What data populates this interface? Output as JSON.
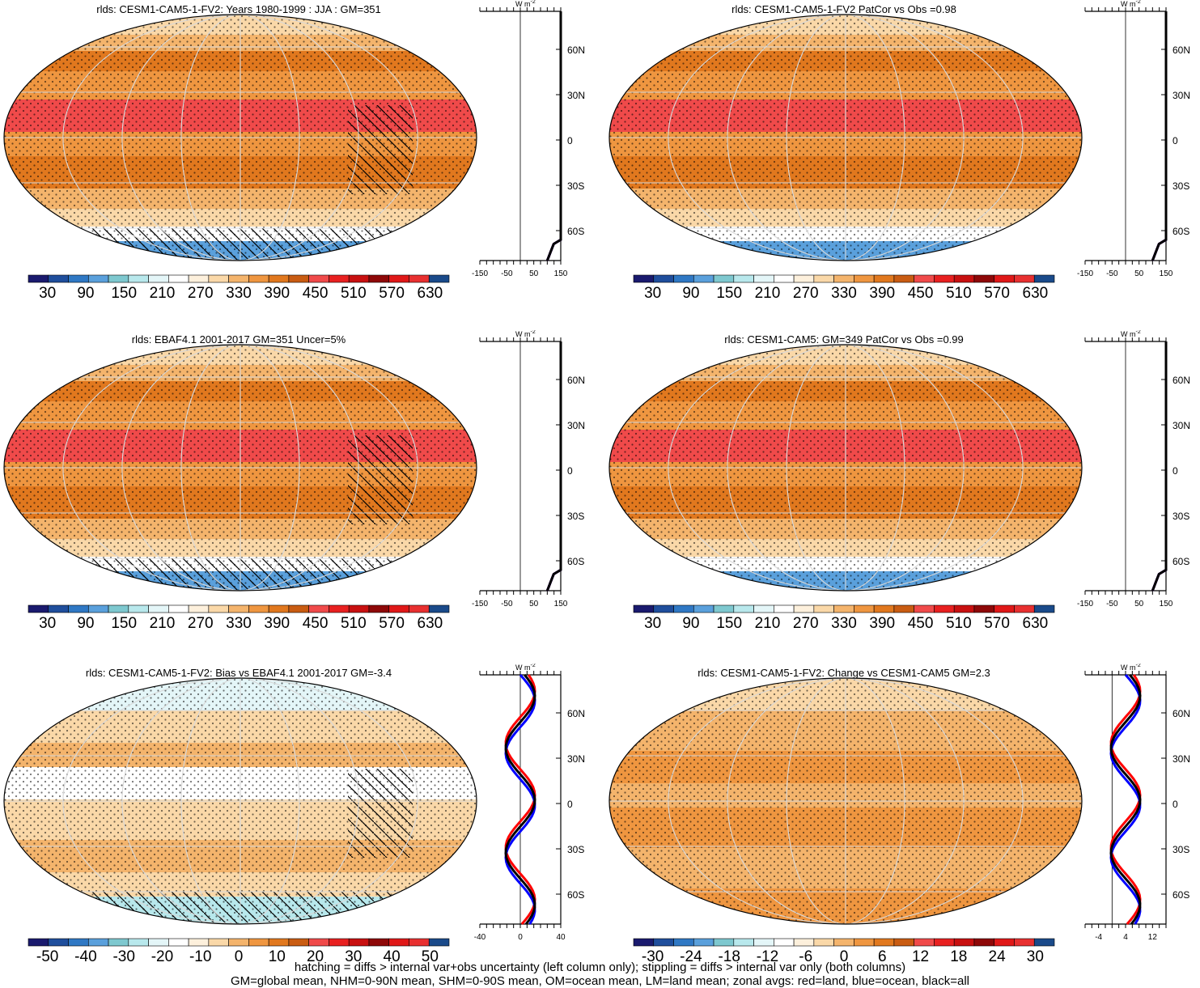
{
  "panels": [
    {
      "id": "p1",
      "title": "rlds: CESM1-CAM5-1-FV2: Years 1980-1999 : JJA : GM=351",
      "kind": "abs",
      "colorbar_labels": [
        "30",
        "90",
        "150",
        "210",
        "270",
        "330",
        "390",
        "450",
        "510",
        "570",
        "630"
      ],
      "zonal_ticks": [
        "-150",
        "-50",
        "50",
        "150"
      ],
      "zonal_range": [
        -150,
        150
      ]
    },
    {
      "id": "p2",
      "title": "rlds: CESM1-CAM5-1-FV2 PatCor vs Obs =0.98",
      "kind": "abs",
      "colorbar_labels": [
        "30",
        "90",
        "150",
        "210",
        "270",
        "330",
        "390",
        "450",
        "510",
        "570",
        "630"
      ],
      "zonal_ticks": [
        "-150",
        "-50",
        "50",
        "150"
      ],
      "zonal_range": [
        -150,
        150
      ]
    },
    {
      "id": "p3",
      "title": "rlds: EBAF4.1 2001-2017 GM=351 Uncer=5%",
      "kind": "abs",
      "colorbar_labels": [
        "30",
        "90",
        "150",
        "210",
        "270",
        "330",
        "390",
        "450",
        "510",
        "570",
        "630"
      ],
      "zonal_ticks": [
        "-150",
        "-50",
        "50",
        "150"
      ],
      "zonal_range": [
        -150,
        150
      ]
    },
    {
      "id": "p4",
      "title": "rlds: CESM1-CAM5: GM=349 PatCor vs Obs =0.99",
      "kind": "abs",
      "colorbar_labels": [
        "30",
        "90",
        "150",
        "210",
        "270",
        "330",
        "390",
        "450",
        "510",
        "570",
        "630"
      ],
      "zonal_ticks": [
        "-150",
        "-50",
        "50",
        "150"
      ],
      "zonal_range": [
        -150,
        150
      ]
    },
    {
      "id": "p5",
      "title": "rlds: CESM1-CAM5-1-FV2: Bias vs EBAF4.1 2001-2017 GM=-3.4",
      "kind": "bias",
      "colorbar_labels": [
        "-50",
        "-40",
        "-30",
        "-20",
        "-10",
        "0",
        "10",
        "20",
        "30",
        "40",
        "50"
      ],
      "zonal_ticks": [
        "-40",
        "0",
        "40"
      ],
      "zonal_range": [
        -40,
        40
      ]
    },
    {
      "id": "p6",
      "title": "rlds: CESM1-CAM5-1-FV2: Change vs CESM1-CAM5 GM=2.3",
      "kind": "change",
      "colorbar_labels": [
        "-30",
        "-24",
        "-18",
        "-12",
        "-6",
        "0",
        "6",
        "12",
        "18",
        "24",
        "30"
      ],
      "zonal_ticks": [
        "-4",
        "4",
        "12"
      ],
      "zonal_range": [
        -8,
        16
      ]
    }
  ],
  "lat_labels": [
    "60N",
    "30N",
    "0",
    "30S",
    "60S"
  ],
  "unit_label": "W m",
  "unit_exp": "-2",
  "colorbar_colors": [
    "#1a1a6e",
    "#1f4e9c",
    "#2f78c4",
    "#5aa0dc",
    "#7ec8cf",
    "#b8e8ec",
    "#e4f6f8",
    "#ffffff",
    "#fdf0dc",
    "#fad8a8",
    "#f4b46c",
    "#ef9640",
    "#e1781e",
    "#c95c12",
    "#f04a4a",
    "#e82020",
    "#c81010",
    "#8e0808",
    "#e01818",
    "#e83030",
    "#1a4a8a"
  ],
  "legend_colors": {
    "land": "#ff0000",
    "ocean": "#0000ff",
    "all": "#000000"
  },
  "footer": [
    "hatching = diffs > internal var+obs uncertainty (left column only); stippling = diffs > internal var only (both columns)",
    "GM=global mean, NHM=0-90N mean, SHM=0-90S mean, OM=ocean mean, LM=land mean; zonal avgs: red=land, blue=ocean, black=all"
  ],
  "chart_data": [
    {
      "type": "heatmap",
      "title": "rlds: CESM1-CAM5-1-FV2: Years 1980-1999 : JJA : GM=351",
      "colorbar": [
        30,
        90,
        150,
        210,
        270,
        330,
        390,
        450,
        510,
        570,
        630
      ],
      "zonal_xlim": [
        -150,
        150
      ]
    },
    {
      "type": "heatmap",
      "title": "rlds: CESM1-CAM5-1-FV2 PatCor vs Obs =0.98",
      "colorbar": [
        30,
        90,
        150,
        210,
        270,
        330,
        390,
        450,
        510,
        570,
        630
      ],
      "zonal_xlim": [
        -150,
        150
      ]
    },
    {
      "type": "heatmap",
      "title": "rlds: EBAF4.1 2001-2017 GM=351 Uncer=5%",
      "colorbar": [
        30,
        90,
        150,
        210,
        270,
        330,
        390,
        450,
        510,
        570,
        630
      ],
      "zonal_xlim": [
        -150,
        150
      ]
    },
    {
      "type": "heatmap",
      "title": "rlds: CESM1-CAM5: GM=349 PatCor vs Obs =0.99",
      "colorbar": [
        30,
        90,
        150,
        210,
        270,
        330,
        390,
        450,
        510,
        570,
        630
      ],
      "zonal_xlim": [
        -150,
        150
      ]
    },
    {
      "type": "heatmap",
      "title": "rlds: CESM1-CAM5-1-FV2: Bias vs EBAF4.1 2001-2017 GM=-3.4",
      "colorbar": [
        -50,
        -40,
        -30,
        -20,
        -10,
        0,
        10,
        20,
        30,
        40,
        50
      ],
      "zonal_xlim": [
        -40,
        40
      ]
    },
    {
      "type": "heatmap",
      "title": "rlds: CESM1-CAM5-1-FV2: Change vs CESM1-CAM5 GM=2.3",
      "colorbar": [
        -30,
        -24,
        -18,
        -12,
        -6,
        0,
        6,
        12,
        18,
        24,
        30
      ],
      "zonal_xlim": [
        -8,
        16
      ]
    }
  ]
}
